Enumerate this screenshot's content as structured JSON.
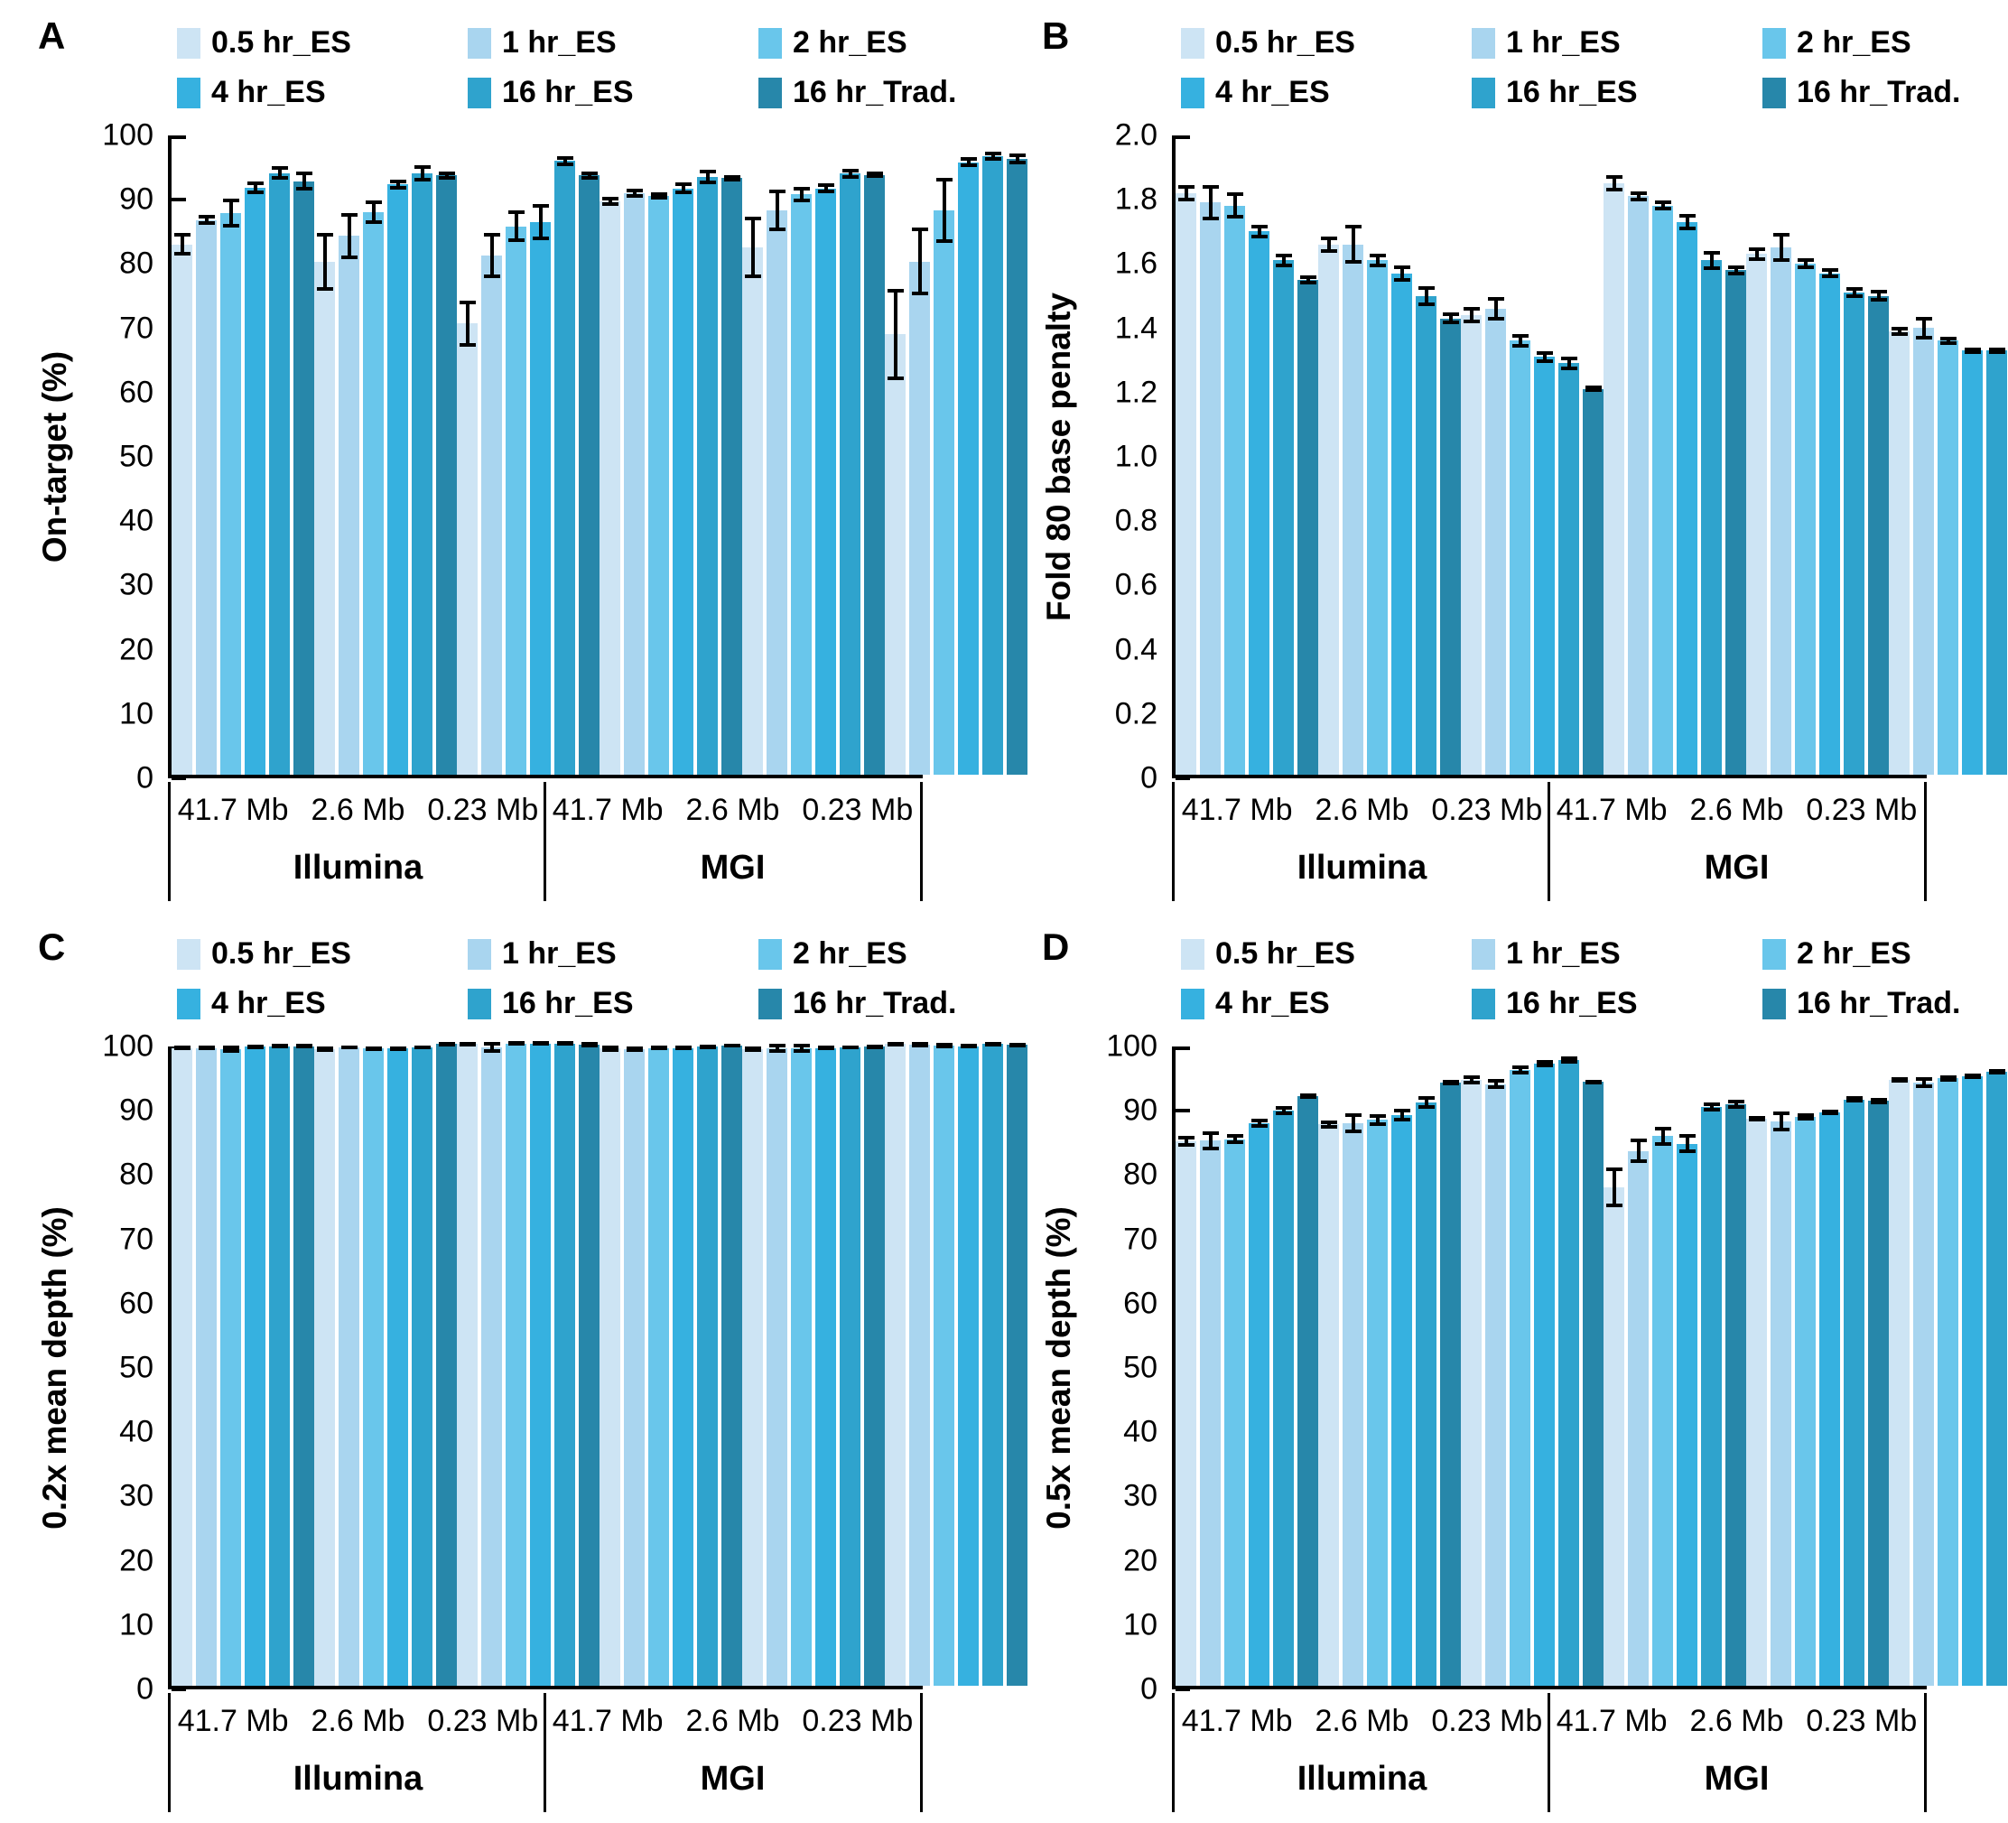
{
  "colors": {
    "series": [
      "#cde4f4",
      "#a9d5ef",
      "#69c6eb",
      "#36b1e0",
      "#2fa3cd",
      "#2787aa"
    ],
    "axis": "#000000",
    "error_bar": "#000000",
    "background": "#ffffff"
  },
  "legend_labels": [
    "0.5 hr_ES",
    "1 hr_ES",
    "2 hr_ES",
    "4 hr_ES",
    "16 hr_ES",
    "16 hr_Trad."
  ],
  "chart_data": [
    {
      "type": "bar",
      "panel_label": "A",
      "ylabel": "On-target (%)",
      "ylim": [
        0,
        100
      ],
      "ytick_labels": [
        "0",
        "10",
        "20",
        "30",
        "40",
        "50",
        "60",
        "70",
        "80",
        "90",
        "100"
      ],
      "grid": false,
      "legend_position": "top",
      "platforms": [
        "Illumina",
        "MGI"
      ],
      "categories": [
        "41.7 Mb",
        "2.6 Mb",
        "0.23 Mb"
      ],
      "group_order": [
        "Illumina 41.7 Mb",
        "Illumina 2.6 Mb",
        "Illumina 0.23 Mb",
        "MGI 41.7 Mb",
        "MGI 2.6 Mb",
        "MGI 0.23 Mb"
      ],
      "series": [
        {
          "name": "0.5 hr_ES",
          "values": [
            82.5,
            79.8,
            70.2,
            89.2,
            82.0,
            68.5
          ],
          "errors": [
            1.5,
            4.2,
            3.3,
            0.4,
            4.5,
            6.8
          ]
        },
        {
          "name": "1 hr_ES",
          "values": [
            86.3,
            83.8,
            80.8,
            90.5,
            87.8,
            79.8
          ],
          "errors": [
            0.5,
            3.3,
            3.2,
            0.4,
            3.0,
            5.0
          ]
        },
        {
          "name": "2 hr_ES",
          "values": [
            87.4,
            87.5,
            85.3,
            90.0,
            90.3,
            87.8
          ],
          "errors": [
            2.0,
            1.5,
            2.2,
            0.3,
            0.9,
            4.8
          ]
        },
        {
          "name": "4 hr_ES",
          "values": [
            91.3,
            91.8,
            86.0,
            91.2,
            91.2,
            95.3
          ],
          "errors": [
            0.7,
            0.5,
            2.5,
            0.6,
            0.5,
            0.5
          ]
        },
        {
          "name": "16 hr_ES",
          "values": [
            93.6,
            93.5,
            95.5,
            93.0,
            93.5,
            96.2
          ],
          "errors": [
            0.8,
            1.0,
            0.5,
            0.8,
            0.5,
            0.4
          ]
        },
        {
          "name": "16 hr_Trad.",
          "values": [
            92.3,
            93.2,
            93.2,
            92.8,
            93.3,
            95.8
          ],
          "errors": [
            1.2,
            0.3,
            0.3,
            0.2,
            0.2,
            0.5
          ]
        }
      ]
    },
    {
      "type": "bar",
      "panel_label": "B",
      "ylabel": "Fold 80 base penalty",
      "ylim": [
        0,
        2.0
      ],
      "ytick_labels": [
        "0",
        "0.2",
        "0.4",
        "0.6",
        "0.8",
        "1.0",
        "1.2",
        "1.4",
        "1.6",
        "1.8",
        "2.0"
      ],
      "grid": false,
      "legend_position": "top",
      "platforms": [
        "Illumina",
        "MGI"
      ],
      "categories": [
        "41.7 Mb",
        "2.6 Mb",
        "0.23 Mb"
      ],
      "group_order": [
        "Illumina 41.7 Mb",
        "Illumina 2.6 Mb",
        "Illumina 0.23 Mb",
        "MGI 41.7 Mb",
        "MGI 2.6 Mb",
        "MGI 0.23 Mb"
      ],
      "series": [
        {
          "name": "0.5 hr_ES",
          "values": [
            1.81,
            1.65,
            1.43,
            1.84,
            1.62,
            1.38
          ],
          "errors": [
            0.02,
            0.02,
            0.02,
            0.02,
            0.015,
            0.008
          ]
        },
        {
          "name": "1 hr_ES",
          "values": [
            1.78,
            1.65,
            1.45,
            1.8,
            1.64,
            1.39
          ],
          "errors": [
            0.05,
            0.055,
            0.03,
            0.01,
            0.04,
            0.03
          ]
        },
        {
          "name": "2 hr_ES",
          "values": [
            1.77,
            1.6,
            1.35,
            1.77,
            1.59,
            1.35
          ],
          "errors": [
            0.035,
            0.015,
            0.015,
            0.01,
            0.01,
            0.008
          ]
        },
        {
          "name": "4 hr_ES",
          "values": [
            1.69,
            1.56,
            1.3,
            1.72,
            1.56,
            1.32
          ],
          "errors": [
            0.015,
            0.02,
            0.012,
            0.02,
            0.01,
            0.004
          ]
        },
        {
          "name": "16 hr_ES",
          "values": [
            1.6,
            1.49,
            1.28,
            1.6,
            1.5,
            1.32
          ],
          "errors": [
            0.015,
            0.025,
            0.015,
            0.025,
            0.01,
            0.004
          ]
        },
        {
          "name": "16 hr_Trad.",
          "values": [
            1.54,
            1.42,
            1.2,
            1.57,
            1.49,
            1.27
          ],
          "errors": [
            0.008,
            0.012,
            0.004,
            0.01,
            0.012,
            0.008
          ]
        }
      ]
    },
    {
      "type": "bar",
      "panel_label": "C",
      "ylabel": "0.2x mean depth (%)",
      "ylim": [
        0,
        100
      ],
      "ytick_labels": [
        "0",
        "10",
        "20",
        "30",
        "40",
        "50",
        "60",
        "70",
        "80",
        "90",
        "100"
      ],
      "grid": false,
      "legend_position": "top",
      "platforms": [
        "Illumina",
        "MGI"
      ],
      "categories": [
        "41.7 Mb",
        "2.6 Mb",
        "0.23 Mb"
      ],
      "group_order": [
        "Illumina 41.7 Mb",
        "Illumina 2.6 Mb",
        "Illumina 0.23 Mb",
        "MGI 41.7 Mb",
        "MGI 2.6 Mb",
        "MGI 0.23 Mb"
      ],
      "series": [
        {
          "name": "0.5 hr_ES",
          "values": [
            99.2,
            99.0,
            99.8,
            99.1,
            99.0,
            99.8
          ],
          "errors": [
            0.1,
            0.1,
            0.05,
            0.2,
            0.1,
            0.05
          ]
        },
        {
          "name": "1 hr_ES",
          "values": [
            99.2,
            99.3,
            99.3,
            99.0,
            99.2,
            99.7
          ],
          "errors": [
            0.1,
            0.05,
            0.5,
            0.1,
            0.4,
            0.1
          ]
        },
        {
          "name": "2 hr_ES",
          "values": [
            99.0,
            99.1,
            99.9,
            99.2,
            99.2,
            99.6
          ],
          "errors": [
            0.3,
            0.1,
            0.05,
            0.1,
            0.4,
            0.15
          ]
        },
        {
          "name": "4 hr_ES",
          "values": [
            99.4,
            99.1,
            99.9,
            99.2,
            99.2,
            99.5
          ],
          "errors": [
            0.05,
            0.1,
            0.05,
            0.1,
            0.1,
            0.1
          ]
        },
        {
          "name": "16 hr_ES",
          "values": [
            99.5,
            99.3,
            99.9,
            99.4,
            99.3,
            99.8
          ],
          "errors": [
            0.05,
            0.05,
            0.05,
            0.1,
            0.05,
            0.05
          ]
        },
        {
          "name": "16 hr_Trad.",
          "values": [
            99.5,
            99.8,
            99.7,
            99.6,
            99.4,
            99.7
          ],
          "errors": [
            0.05,
            0.05,
            0.1,
            0.05,
            0.05,
            0.05
          ]
        }
      ]
    },
    {
      "type": "bar",
      "panel_label": "D",
      "ylabel": "0.5x mean depth (%)",
      "ylim": [
        0,
        100
      ],
      "ytick_labels": [
        "0",
        "10",
        "20",
        "30",
        "40",
        "50",
        "60",
        "70",
        "80",
        "90",
        "100"
      ],
      "grid": false,
      "legend_position": "top",
      "platforms": [
        "Illumina",
        "MGI"
      ],
      "categories": [
        "41.7 Mb",
        "2.6 Mb",
        "0.23 Mb"
      ],
      "group_order": [
        "Illumina 41.7 Mb",
        "Illumina 2.6 Mb",
        "Illumina 0.23 Mb",
        "MGI 41.7 Mb",
        "MGI 2.6 Mb",
        "MGI 0.23 Mb"
      ],
      "series": [
        {
          "name": "0.5 hr_ES",
          "values": [
            84.7,
            87.3,
            94.2,
            77.5,
            88.2,
            94.3
          ],
          "errors": [
            0.5,
            0.3,
            0.4,
            2.8,
            0.2,
            0.15
          ]
        },
        {
          "name": "1 hr_ES",
          "values": [
            84.8,
            87.5,
            93.6,
            83.2,
            87.8,
            93.8
          ],
          "errors": [
            1.2,
            1.3,
            0.5,
            1.6,
            1.3,
            0.6
          ]
        },
        {
          "name": "2 hr_ES",
          "values": [
            85.0,
            88.0,
            95.8,
            85.5,
            88.5,
            94.5
          ],
          "errors": [
            0.5,
            0.6,
            0.4,
            1.2,
            0.3,
            0.2
          ]
        },
        {
          "name": "4 hr_ES",
          "values": [
            87.5,
            88.8,
            96.8,
            84.3,
            89.2,
            94.8
          ],
          "errors": [
            0.4,
            0.7,
            0.3,
            1.2,
            0.2,
            0.2
          ]
        },
        {
          "name": "16 hr_ES",
          "values": [
            89.5,
            90.7,
            97.3,
            90.0,
            91.2,
            95.5
          ],
          "errors": [
            0.4,
            0.7,
            0.3,
            0.4,
            0.2,
            0.1
          ]
        },
        {
          "name": "16 hr_Trad.",
          "values": [
            91.7,
            93.8,
            93.9,
            90.5,
            91.0,
            95.5
          ],
          "errors": [
            0.15,
            0.15,
            0.1,
            0.4,
            0.2,
            0.1
          ]
        }
      ]
    }
  ]
}
